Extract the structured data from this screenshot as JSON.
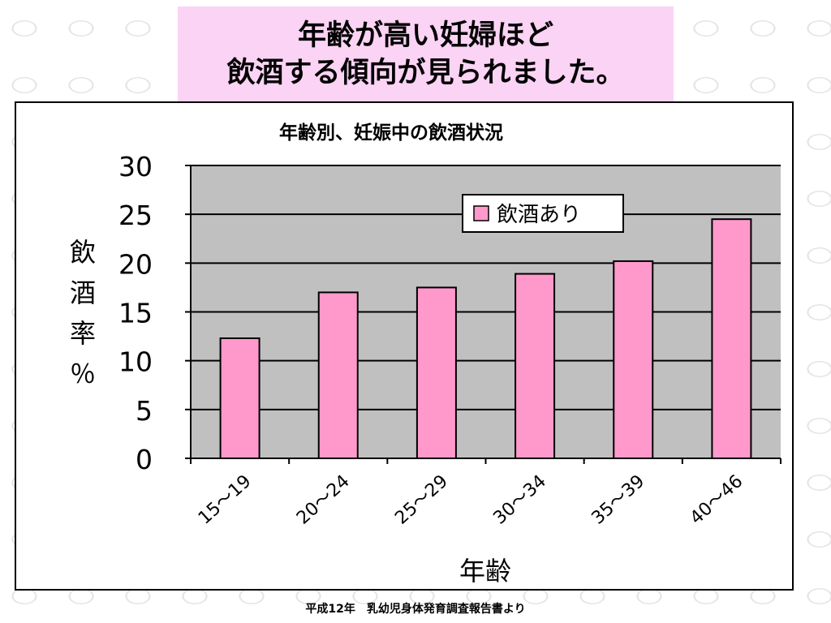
{
  "slide": {
    "title_lines": [
      "年齢が高い妊婦ほど",
      "飲酒する傾向が見られました。"
    ],
    "source": "平成12年　乳幼児身体発育調査報告書より"
  },
  "colors": {
    "title_bg": "#fbd3f4",
    "bar_fill": "#ff99cc",
    "plot_bg": "#c0c0c0"
  },
  "chart_data": {
    "type": "bar",
    "title": "年齢別、妊娠中の飲酒状況",
    "xlabel": "年齢",
    "ylabel": "飲酒率％",
    "categories": [
      "15～19",
      "20～24",
      "25～29",
      "30～34",
      "35～39",
      "40～46"
    ],
    "series": [
      {
        "name": "飲酒あり",
        "values": [
          12.3,
          17.0,
          17.5,
          18.9,
          20.2,
          24.5
        ]
      }
    ],
    "ylim": [
      0,
      30
    ],
    "yticks": [
      0,
      5,
      10,
      15,
      20,
      25,
      30
    ],
    "grid": true,
    "legend": "top-right"
  }
}
